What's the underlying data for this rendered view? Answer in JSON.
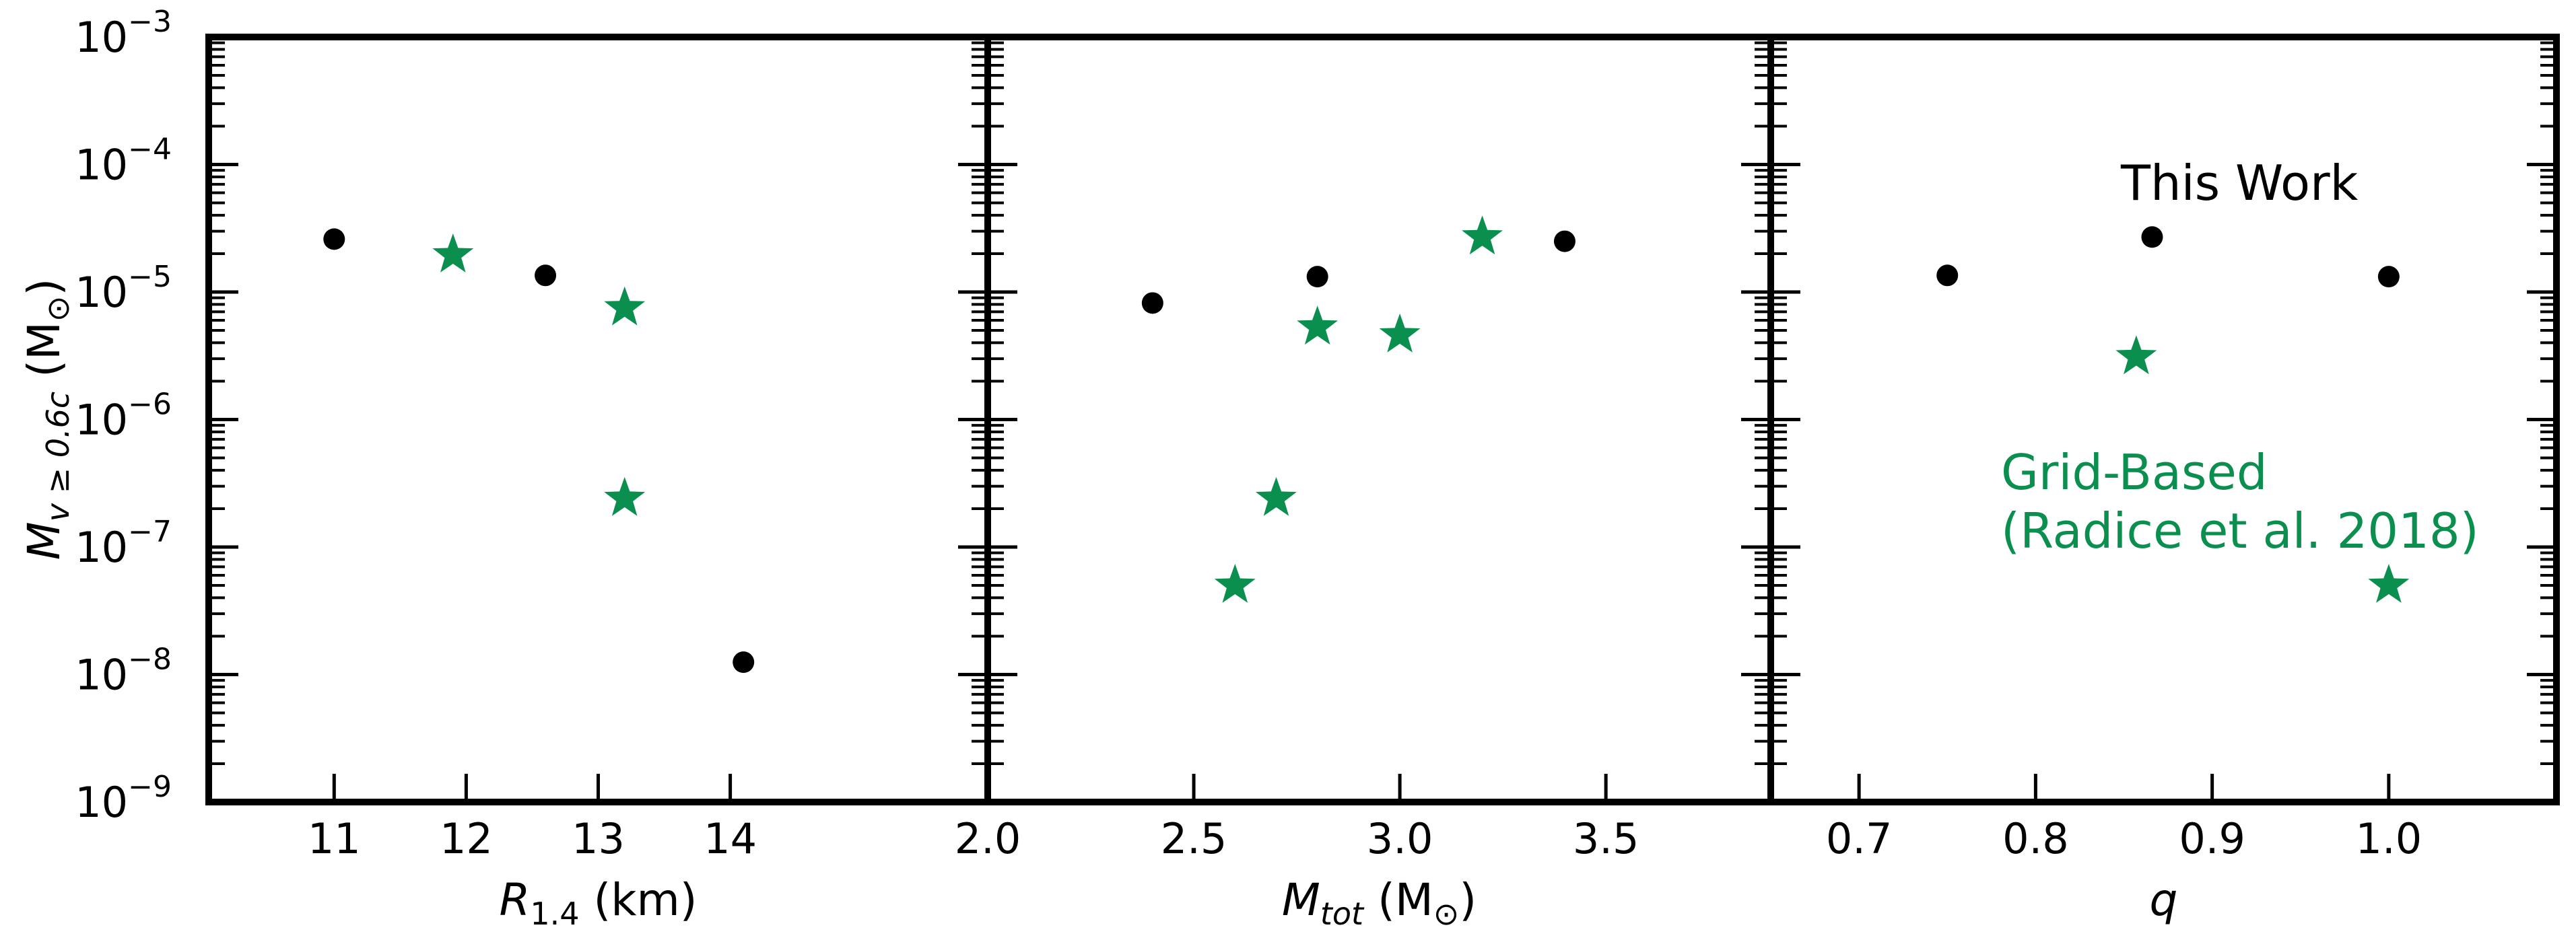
{
  "chart_data": {
    "type": "scatter",
    "shared_y": {
      "label_main": "M",
      "label_sub": "v ≥ 0.6c",
      "label_paren_open": " (M",
      "label_sun": "⊙",
      "label_paren_close": ")",
      "scale": "log",
      "ylim": [
        1e-09,
        0.001
      ],
      "ticks": [
        {
          "exp": -9,
          "base": "10",
          "sup": "−9"
        },
        {
          "exp": -8,
          "base": "10",
          "sup": "−8"
        },
        {
          "exp": -7,
          "base": "10",
          "sup": "−7"
        },
        {
          "exp": -6,
          "base": "10",
          "sup": "−6"
        },
        {
          "exp": -5,
          "base": "10",
          "sup": "−5"
        },
        {
          "exp": -4,
          "base": "10",
          "sup": "−4"
        },
        {
          "exp": -3,
          "base": "10",
          "sup": "−3"
        }
      ]
    },
    "marker_colors": {
      "this_work": "#000000",
      "grid_based": "#0a8f4f"
    },
    "panels": [
      {
        "xlabel": {
          "main": "R",
          "sub": "1.4",
          "rest": " (km)"
        },
        "xlim": [
          10.05,
          15.95
        ],
        "xticks": [
          {
            "v": 11,
            "label": "11"
          },
          {
            "v": 12,
            "label": "12"
          },
          {
            "v": 13,
            "label": "13"
          },
          {
            "v": 14,
            "label": "14"
          }
        ],
        "series": [
          {
            "marker": "circle",
            "points": [
              [
                11.0,
                2.6e-05
              ],
              [
                12.6,
                1.35e-05
              ],
              [
                14.1,
                1.25e-08
              ]
            ]
          },
          {
            "marker": "star",
            "points": [
              [
                11.9,
                1.95e-05
              ],
              [
                13.2,
                7.5e-06
              ],
              [
                13.2,
                2.4e-07
              ]
            ]
          }
        ]
      },
      {
        "xlabel": {
          "main": "M",
          "sub": "tot",
          "rest": " (M",
          "sun": "⊙",
          "close": ")"
        },
        "xlim": [
          2.0,
          3.9
        ],
        "xticks": [
          {
            "v": 2.0,
            "label": "2.0"
          },
          {
            "v": 2.5,
            "label": "2.5"
          },
          {
            "v": 3.0,
            "label": "3.0"
          },
          {
            "v": 3.5,
            "label": "3.5"
          }
        ],
        "series": [
          {
            "marker": "circle",
            "points": [
              [
                2.4,
                8.2e-06
              ],
              [
                2.8,
                1.32e-05
              ],
              [
                3.4,
                2.5e-05
              ]
            ]
          },
          {
            "marker": "star",
            "points": [
              [
                2.6,
                5e-08
              ],
              [
                2.7,
                2.4e-07
              ],
              [
                2.8,
                5.3e-06
              ],
              [
                3.0,
                4.6e-06
              ],
              [
                3.2,
                2.7e-05
              ]
            ]
          }
        ]
      },
      {
        "xlabel": {
          "main": "q",
          "sub": "",
          "rest": ""
        },
        "xlim": [
          0.65,
          1.095
        ],
        "xticks": [
          {
            "v": 0.7,
            "label": "0.7"
          },
          {
            "v": 0.8,
            "label": "0.8"
          },
          {
            "v": 0.9,
            "label": "0.9"
          },
          {
            "v": 1.0,
            "label": "1.0"
          }
        ],
        "series": [
          {
            "marker": "circle",
            "points": [
              [
                0.75,
                1.35e-05
              ],
              [
                0.866,
                2.7e-05
              ],
              [
                1.0,
                1.32e-05
              ]
            ]
          },
          {
            "marker": "star",
            "points": [
              [
                0.857,
                3.1e-06
              ],
              [
                1.0,
                5e-08
              ]
            ]
          }
        ]
      }
    ],
    "annotations": {
      "this_work": "This Work",
      "grid_based_line1": "Grid-Based",
      "grid_based_line2": "(Radice et al. 2018)"
    }
  }
}
